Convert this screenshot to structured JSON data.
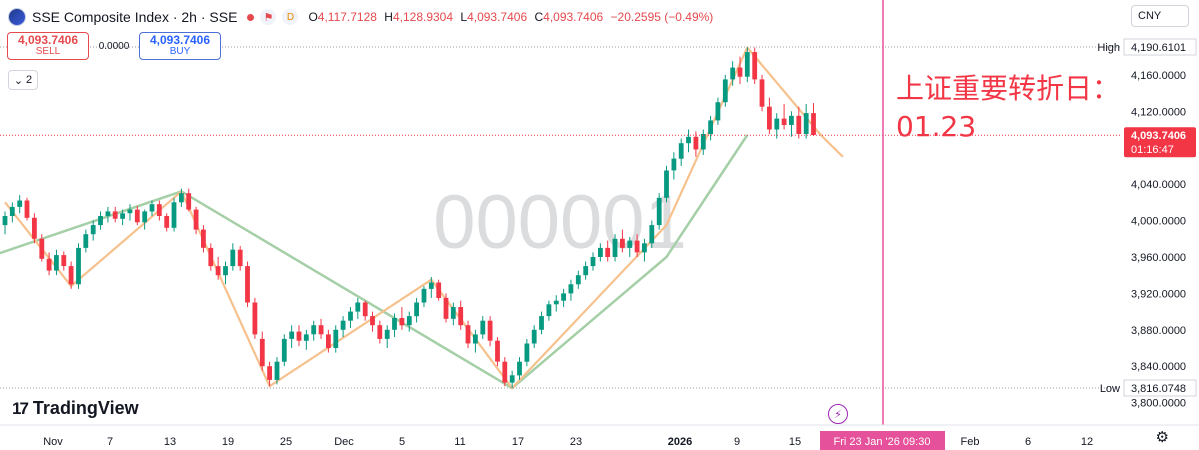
{
  "legend": {
    "title": "SSE Composite Index · 2h · SSE",
    "open_key": "O",
    "open": "4,117.7128",
    "high_key": "H",
    "high": "4,128.9304",
    "low_key": "L",
    "low": "4,093.7406",
    "close_key": "C",
    "close": "4,093.7406",
    "change": "−20.2595 (−0.49%)",
    "dividend_badge": "D"
  },
  "trade": {
    "sell_price": "4,093.7406",
    "sell_label": "SELL",
    "spread": "0.0000",
    "buy_price": "4,093.7406",
    "buy_label": "BUY"
  },
  "indicators": {
    "count": "2"
  },
  "currency": "CNY",
  "logo_text": "TradingView",
  "logo_mark": "17",
  "watermark": "000001",
  "annotation": {
    "line1": "上证重要转折日：",
    "line2": "01.23"
  },
  "price_scale": {
    "high_label": "High",
    "high_value": "4,190.6101",
    "low_label": "Low",
    "low_value": "3,816.0748",
    "last_value": "4,093.7406",
    "countdown": "01:16:47",
    "ticks": [
      "4,160.0000",
      "4,120.0000",
      "4,080.0000",
      "4,040.0000",
      "4,000.0000",
      "3,960.0000",
      "3,920.0000",
      "3,880.0000",
      "3,840.0000",
      "3,800.0000"
    ]
  },
  "time_scale": {
    "labels": [
      "Nov",
      "7",
      "13",
      "19",
      "25",
      "Dec",
      "5",
      "11",
      "17",
      "23",
      "2026",
      "9",
      "15",
      "Feb",
      "6",
      "12"
    ],
    "crosshair_label": "Fri 23 Jan '26   09:30"
  },
  "colors": {
    "up": "#089981",
    "down": "#f23645",
    "zigzag_minor": "#f6c18d",
    "zigzag_major": "#a5cfa7",
    "crosshair": "#e5519a",
    "last_price": "#f23645"
  },
  "chart_data": {
    "type": "candlestick",
    "ylim": [
      3795,
      4200
    ],
    "last_price": 4093.7406,
    "session_high": 4190.6101,
    "session_low": 3816.0748,
    "candles": [
      [
        3995,
        4010,
        3985,
        4005
      ],
      [
        4005,
        4020,
        3998,
        4015
      ],
      [
        4015,
        4028,
        4008,
        4022
      ],
      [
        4022,
        4025,
        4000,
        4003
      ],
      [
        4003,
        4008,
        3975,
        3980
      ],
      [
        3980,
        3985,
        3955,
        3958
      ],
      [
        3958,
        3965,
        3940,
        3945
      ],
      [
        3945,
        3968,
        3940,
        3962
      ],
      [
        3962,
        3966,
        3945,
        3950
      ],
      [
        3950,
        3955,
        3925,
        3930
      ],
      [
        3930,
        3975,
        3925,
        3970
      ],
      [
        3970,
        3990,
        3965,
        3985
      ],
      [
        3985,
        4000,
        3978,
        3995
      ],
      [
        3995,
        4010,
        3990,
        4005
      ],
      [
        4005,
        4015,
        3998,
        4010
      ],
      [
        4010,
        4015,
        3998,
        4002
      ],
      [
        4002,
        4012,
        3995,
        4008
      ],
      [
        4008,
        4018,
        4000,
        4012
      ],
      [
        4012,
        4016,
        3995,
        3998
      ],
      [
        3998,
        4012,
        3990,
        4010
      ],
      [
        4010,
        4022,
        4005,
        4018
      ],
      [
        4018,
        4022,
        4000,
        4005
      ],
      [
        4005,
        4008,
        3988,
        3992
      ],
      [
        3992,
        4025,
        3988,
        4020
      ],
      [
        4020,
        4035,
        4015,
        4030
      ],
      [
        4030,
        4035,
        4010,
        4012
      ],
      [
        4012,
        4015,
        3985,
        3990
      ],
      [
        3990,
        3995,
        3965,
        3970
      ],
      [
        3970,
        3975,
        3945,
        3950
      ],
      [
        3950,
        3960,
        3935,
        3940
      ],
      [
        3940,
        3955,
        3930,
        3950
      ],
      [
        3950,
        3975,
        3945,
        3968
      ],
      [
        3968,
        3972,
        3945,
        3950
      ],
      [
        3950,
        3955,
        3905,
        3910
      ],
      [
        3910,
        3915,
        3870,
        3875
      ],
      [
        3870,
        3878,
        3835,
        3840
      ],
      [
        3840,
        3845,
        3818,
        3825
      ],
      [
        3825,
        3850,
        3820,
        3845
      ],
      [
        3845,
        3875,
        3840,
        3870
      ],
      [
        3870,
        3885,
        3860,
        3878
      ],
      [
        3878,
        3885,
        3862,
        3868
      ],
      [
        3868,
        3880,
        3858,
        3875
      ],
      [
        3875,
        3890,
        3868,
        3885
      ],
      [
        3885,
        3892,
        3870,
        3875
      ],
      [
        3875,
        3880,
        3855,
        3860
      ],
      [
        3860,
        3885,
        3855,
        3880
      ],
      [
        3880,
        3895,
        3872,
        3890
      ],
      [
        3890,
        3905,
        3882,
        3900
      ],
      [
        3900,
        3915,
        3892,
        3910
      ],
      [
        3910,
        3912,
        3890,
        3895
      ],
      [
        3895,
        3900,
        3878,
        3885
      ],
      [
        3885,
        3890,
        3865,
        3870
      ],
      [
        3870,
        3885,
        3860,
        3880
      ],
      [
        3880,
        3898,
        3872,
        3893
      ],
      [
        3893,
        3905,
        3880,
        3885
      ],
      [
        3885,
        3900,
        3878,
        3895
      ],
      [
        3895,
        3915,
        3888,
        3910
      ],
      [
        3910,
        3928,
        3905,
        3925
      ],
      [
        3925,
        3938,
        3915,
        3932
      ],
      [
        3932,
        3935,
        3912,
        3915
      ],
      [
        3915,
        3920,
        3888,
        3892
      ],
      [
        3892,
        3910,
        3885,
        3905
      ],
      [
        3905,
        3912,
        3880,
        3885
      ],
      [
        3885,
        3890,
        3860,
        3865
      ],
      [
        3865,
        3880,
        3855,
        3875
      ],
      [
        3875,
        3895,
        3870,
        3890
      ],
      [
        3890,
        3895,
        3862,
        3868
      ],
      [
        3868,
        3872,
        3840,
        3845
      ],
      [
        3845,
        3850,
        3818,
        3822
      ],
      [
        3822,
        3835,
        3816,
        3830
      ],
      [
        3830,
        3850,
        3825,
        3845
      ],
      [
        3845,
        3870,
        3840,
        3865
      ],
      [
        3865,
        3885,
        3860,
        3880
      ],
      [
        3880,
        3900,
        3875,
        3895
      ],
      [
        3895,
        3912,
        3890,
        3908
      ],
      [
        3908,
        3918,
        3900,
        3912
      ],
      [
        3912,
        3925,
        3905,
        3920
      ],
      [
        3920,
        3935,
        3912,
        3930
      ],
      [
        3930,
        3945,
        3925,
        3940
      ],
      [
        3940,
        3955,
        3935,
        3950
      ],
      [
        3950,
        3965,
        3945,
        3960
      ],
      [
        3960,
        3975,
        3955,
        3970
      ],
      [
        3970,
        3978,
        3955,
        3960
      ],
      [
        3960,
        3985,
        3955,
        3980
      ],
      [
        3980,
        3990,
        3965,
        3970
      ],
      [
        3970,
        3982,
        3960,
        3978
      ],
      [
        3978,
        3985,
        3960,
        3965
      ],
      [
        3965,
        3980,
        3955,
        3975
      ],
      [
        3975,
        4000,
        3970,
        3995
      ],
      [
        3995,
        4030,
        3990,
        4025
      ],
      [
        4025,
        4060,
        4020,
        4055
      ],
      [
        4055,
        4075,
        4045,
        4068
      ],
      [
        4068,
        4090,
        4060,
        4085
      ],
      [
        4085,
        4100,
        4075,
        4092
      ],
      [
        4092,
        4098,
        4070,
        4078
      ],
      [
        4078,
        4100,
        4072,
        4095
      ],
      [
        4095,
        4115,
        4088,
        4110
      ],
      [
        4110,
        4135,
        4105,
        4130
      ],
      [
        4130,
        4160,
        4125,
        4155
      ],
      [
        4155,
        4175,
        4148,
        4168
      ],
      [
        4168,
        4180,
        4150,
        4158
      ],
      [
        4158,
        4190,
        4152,
        4185
      ],
      [
        4185,
        4190,
        4150,
        4155
      ],
      [
        4155,
        4160,
        4120,
        4125
      ],
      [
        4125,
        4135,
        4095,
        4100
      ],
      [
        4100,
        4118,
        4090,
        4112
      ],
      [
        4112,
        4128,
        4100,
        4105
      ],
      [
        4105,
        4120,
        4092,
        4115
      ],
      [
        4115,
        4125,
        4090,
        4095
      ],
      [
        4095,
        4128,
        4090,
        4118
      ],
      [
        4118,
        4129,
        4093,
        4094
      ]
    ],
    "zigzag_minor": [
      [
        0,
        4020
      ],
      [
        9,
        3928
      ],
      [
        24,
        4032
      ],
      [
        36,
        3818
      ],
      [
        58,
        3935
      ],
      [
        69,
        3816
      ],
      [
        90,
        3995
      ],
      [
        101,
        4190
      ],
      [
        111,
        4094
      ],
      [
        114,
        4070
      ]
    ],
    "zigzag_major": [
      [
        -3,
        3958
      ],
      [
        24,
        4032
      ],
      [
        69,
        3816
      ],
      [
        90,
        3960
      ],
      [
        101,
        4094
      ]
    ]
  }
}
